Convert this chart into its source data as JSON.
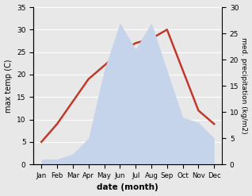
{
  "months": [
    "Jan",
    "Feb",
    "Mar",
    "Apr",
    "May",
    "Jun",
    "Jul",
    "Aug",
    "Sep",
    "Oct",
    "Nov",
    "Dec"
  ],
  "temperature": [
    5,
    9,
    14,
    19,
    22,
    25,
    27,
    28,
    30,
    21,
    12,
    9
  ],
  "precipitation": [
    1,
    1,
    2,
    5,
    18,
    27,
    22,
    27,
    18,
    9,
    8,
    5
  ],
  "temp_color": "#c0392b",
  "precip_fill_color": "#c5d4ea",
  "left_ylabel": "max temp (C)",
  "right_ylabel": "med. precipitation (kg/m2)",
  "xlabel": "date (month)",
  "ylim_left": [
    0,
    35
  ],
  "ylim_right": [
    0,
    30
  ],
  "yticks_left": [
    0,
    5,
    10,
    15,
    20,
    25,
    30,
    35
  ],
  "yticks_right": [
    0,
    5,
    10,
    15,
    20,
    25,
    30
  ],
  "bg_color": "#e8e8e8",
  "grid_color": "#ffffff"
}
